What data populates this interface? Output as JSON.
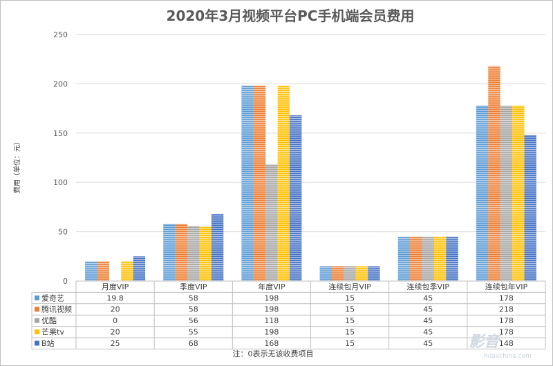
{
  "chart_data": {
    "type": "bar",
    "title": "2020年3月视频平台PC手机端会员费用",
    "ylabel": "费用（单位：元）",
    "xlabel": "",
    "ylim": [
      0,
      250
    ],
    "yticks": [
      0,
      50,
      100,
      150,
      200,
      250
    ],
    "grid": true,
    "legend": "data-table",
    "categories": [
      "月度VIP",
      "季度VIP",
      "年度VIP",
      "连续包月VIP",
      "连续包季VIP",
      "连续包年VIP"
    ],
    "series": [
      {
        "name": "爱奇艺",
        "color": "#5b9bd5",
        "values": [
          19.8,
          58,
          198,
          15,
          45,
          178
        ]
      },
      {
        "name": "腾讯视频",
        "color": "#ed7d31",
        "values": [
          20,
          58,
          198,
          15,
          45,
          218
        ]
      },
      {
        "name": "优酷",
        "color": "#a5a5a5",
        "values": [
          0,
          56,
          118,
          15,
          45,
          178
        ]
      },
      {
        "name": "芒果tv",
        "color": "#ffc000",
        "values": [
          20,
          55,
          198,
          15,
          45,
          178
        ]
      },
      {
        "name": "B站",
        "color": "#4472c4",
        "values": [
          25,
          68,
          168,
          15,
          45,
          148
        ]
      }
    ],
    "note": "注：0表示无该收费项目"
  },
  "watermark": {
    "main": "影音",
    "sub": "hdavchina.com"
  }
}
